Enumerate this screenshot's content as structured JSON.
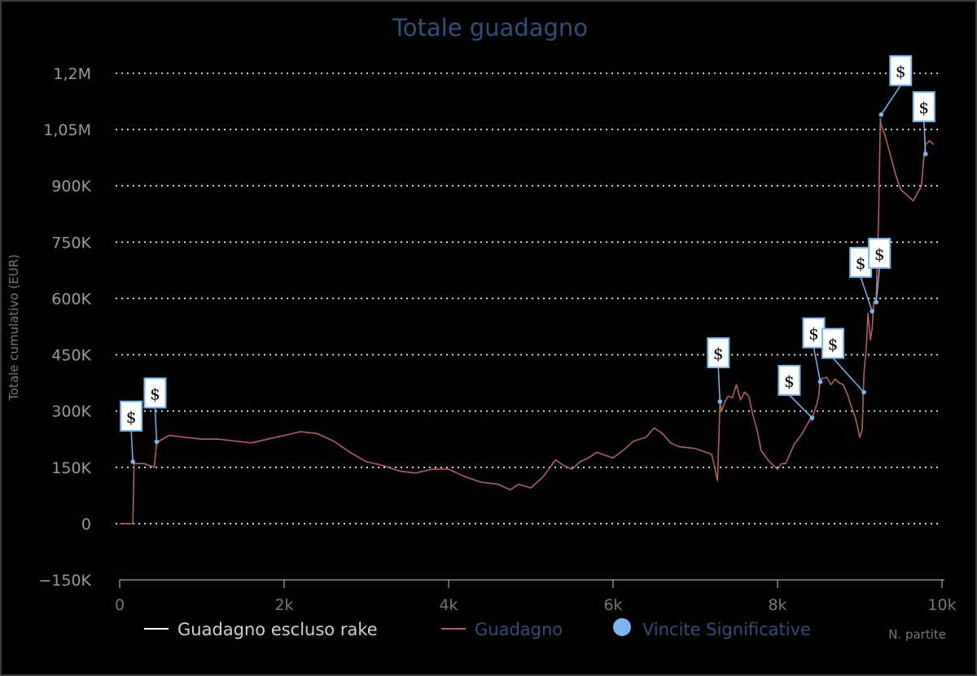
{
  "chart_data": {
    "type": "line",
    "title": "Totale guadagno",
    "ylabel": "Totale cumulativo (EUR)",
    "xlabel": "N. partite",
    "xlim": [
      0,
      10000
    ],
    "ylim": [
      -150000,
      1200000
    ],
    "grid": true,
    "legend_position": "bottom",
    "y_ticks": [
      {
        "value": 1200000,
        "label": "1,2M"
      },
      {
        "value": 1050000,
        "label": "1,05M"
      },
      {
        "value": 900000,
        "label": "900K"
      },
      {
        "value": 750000,
        "label": "750K"
      },
      {
        "value": 600000,
        "label": "600K"
      },
      {
        "value": 450000,
        "label": "450K"
      },
      {
        "value": 300000,
        "label": "300K"
      },
      {
        "value": 150000,
        "label": "150K"
      },
      {
        "value": 0,
        "label": "0"
      },
      {
        "value": -150000,
        "label": "−150K"
      }
    ],
    "x_ticks": [
      {
        "value": 0,
        "label": "0"
      },
      {
        "value": 2000,
        "label": "2k"
      },
      {
        "value": 4000,
        "label": "4k"
      },
      {
        "value": 6000,
        "label": "6k"
      },
      {
        "value": 8000,
        "label": "8k"
      },
      {
        "value": 10000,
        "label": "10k"
      }
    ],
    "legend": [
      {
        "label": "Guadagno escluso rake",
        "color": "#ffffff",
        "text_color": "#d0d0d0",
        "marker": "line"
      },
      {
        "label": "Guadagno",
        "color": "#b06060",
        "text_color": "#2f4f7a",
        "marker": "line"
      },
      {
        "label": "Vincite Significative",
        "color": "#7cb5ec",
        "text_color": "#2f4f7a",
        "marker": "circle"
      }
    ],
    "series": [
      {
        "name": "Guadagno",
        "color": "#b06060",
        "x": [
          0,
          80,
          160,
          175,
          200,
          300,
          420,
          450,
          480,
          600,
          800,
          1000,
          1200,
          1400,
          1600,
          1800,
          2000,
          2200,
          2400,
          2600,
          2800,
          3000,
          3200,
          3400,
          3600,
          3800,
          4000,
          4200,
          4400,
          4600,
          4750,
          4850,
          5000,
          5150,
          5300,
          5400,
          5500,
          5600,
          5700,
          5800,
          6000,
          6150,
          6250,
          6400,
          6500,
          6600,
          6700,
          6800,
          7000,
          7200,
          7270,
          7300,
          7320,
          7350,
          7400,
          7450,
          7500,
          7550,
          7600,
          7650,
          7700,
          7750,
          7800,
          7900,
          8000,
          8050,
          8100,
          8200,
          8300,
          8400,
          8420,
          8450,
          8480,
          8500,
          8520,
          8600,
          8650,
          8700,
          8750,
          8800,
          8850,
          8900,
          8950,
          9000,
          9030,
          9050,
          9080,
          9100,
          9130,
          9150,
          9170,
          9200,
          9230,
          9250,
          9260,
          9300,
          9350,
          9400,
          9450,
          9500,
          9550,
          9600,
          9650,
          9700,
          9750,
          9780,
          9800,
          9850,
          9900
        ],
        "values": [
          0,
          0,
          0,
          160000,
          160000,
          160000,
          150000,
          215000,
          220000,
          235000,
          230000,
          225000,
          225000,
          220000,
          215000,
          225000,
          235000,
          245000,
          240000,
          220000,
          190000,
          165000,
          155000,
          140000,
          135000,
          145000,
          145000,
          125000,
          110000,
          105000,
          90000,
          105000,
          95000,
          125000,
          170000,
          155000,
          145000,
          165000,
          175000,
          190000,
          175000,
          200000,
          220000,
          230000,
          255000,
          240000,
          215000,
          205000,
          200000,
          185000,
          115000,
          325000,
          300000,
          320000,
          340000,
          335000,
          370000,
          330000,
          350000,
          340000,
          290000,
          250000,
          195000,
          165000,
          145000,
          160000,
          160000,
          210000,
          240000,
          280000,
          275000,
          300000,
          320000,
          340000,
          385000,
          390000,
          370000,
          385000,
          375000,
          370000,
          345000,
          310000,
          280000,
          230000,
          250000,
          400000,
          470000,
          560000,
          490000,
          520000,
          590000,
          600000,
          820000,
          1080000,
          1060000,
          1040000,
          1000000,
          960000,
          920000,
          890000,
          880000,
          870000,
          860000,
          880000,
          900000,
          980000,
          1010000,
          1020000,
          1010000
        ]
      },
      {
        "name": "Vincite Significative",
        "color": "#7cb5ec",
        "x": [
          160,
          450,
          7300,
          8420,
          8520,
          9050,
          9150,
          9200,
          9260,
          9800
        ],
        "values": [
          165000,
          218000,
          325000,
          282000,
          378000,
          350000,
          566000,
          590000,
          1090000,
          985000
        ]
      }
    ],
    "annotation_label": "$"
  }
}
